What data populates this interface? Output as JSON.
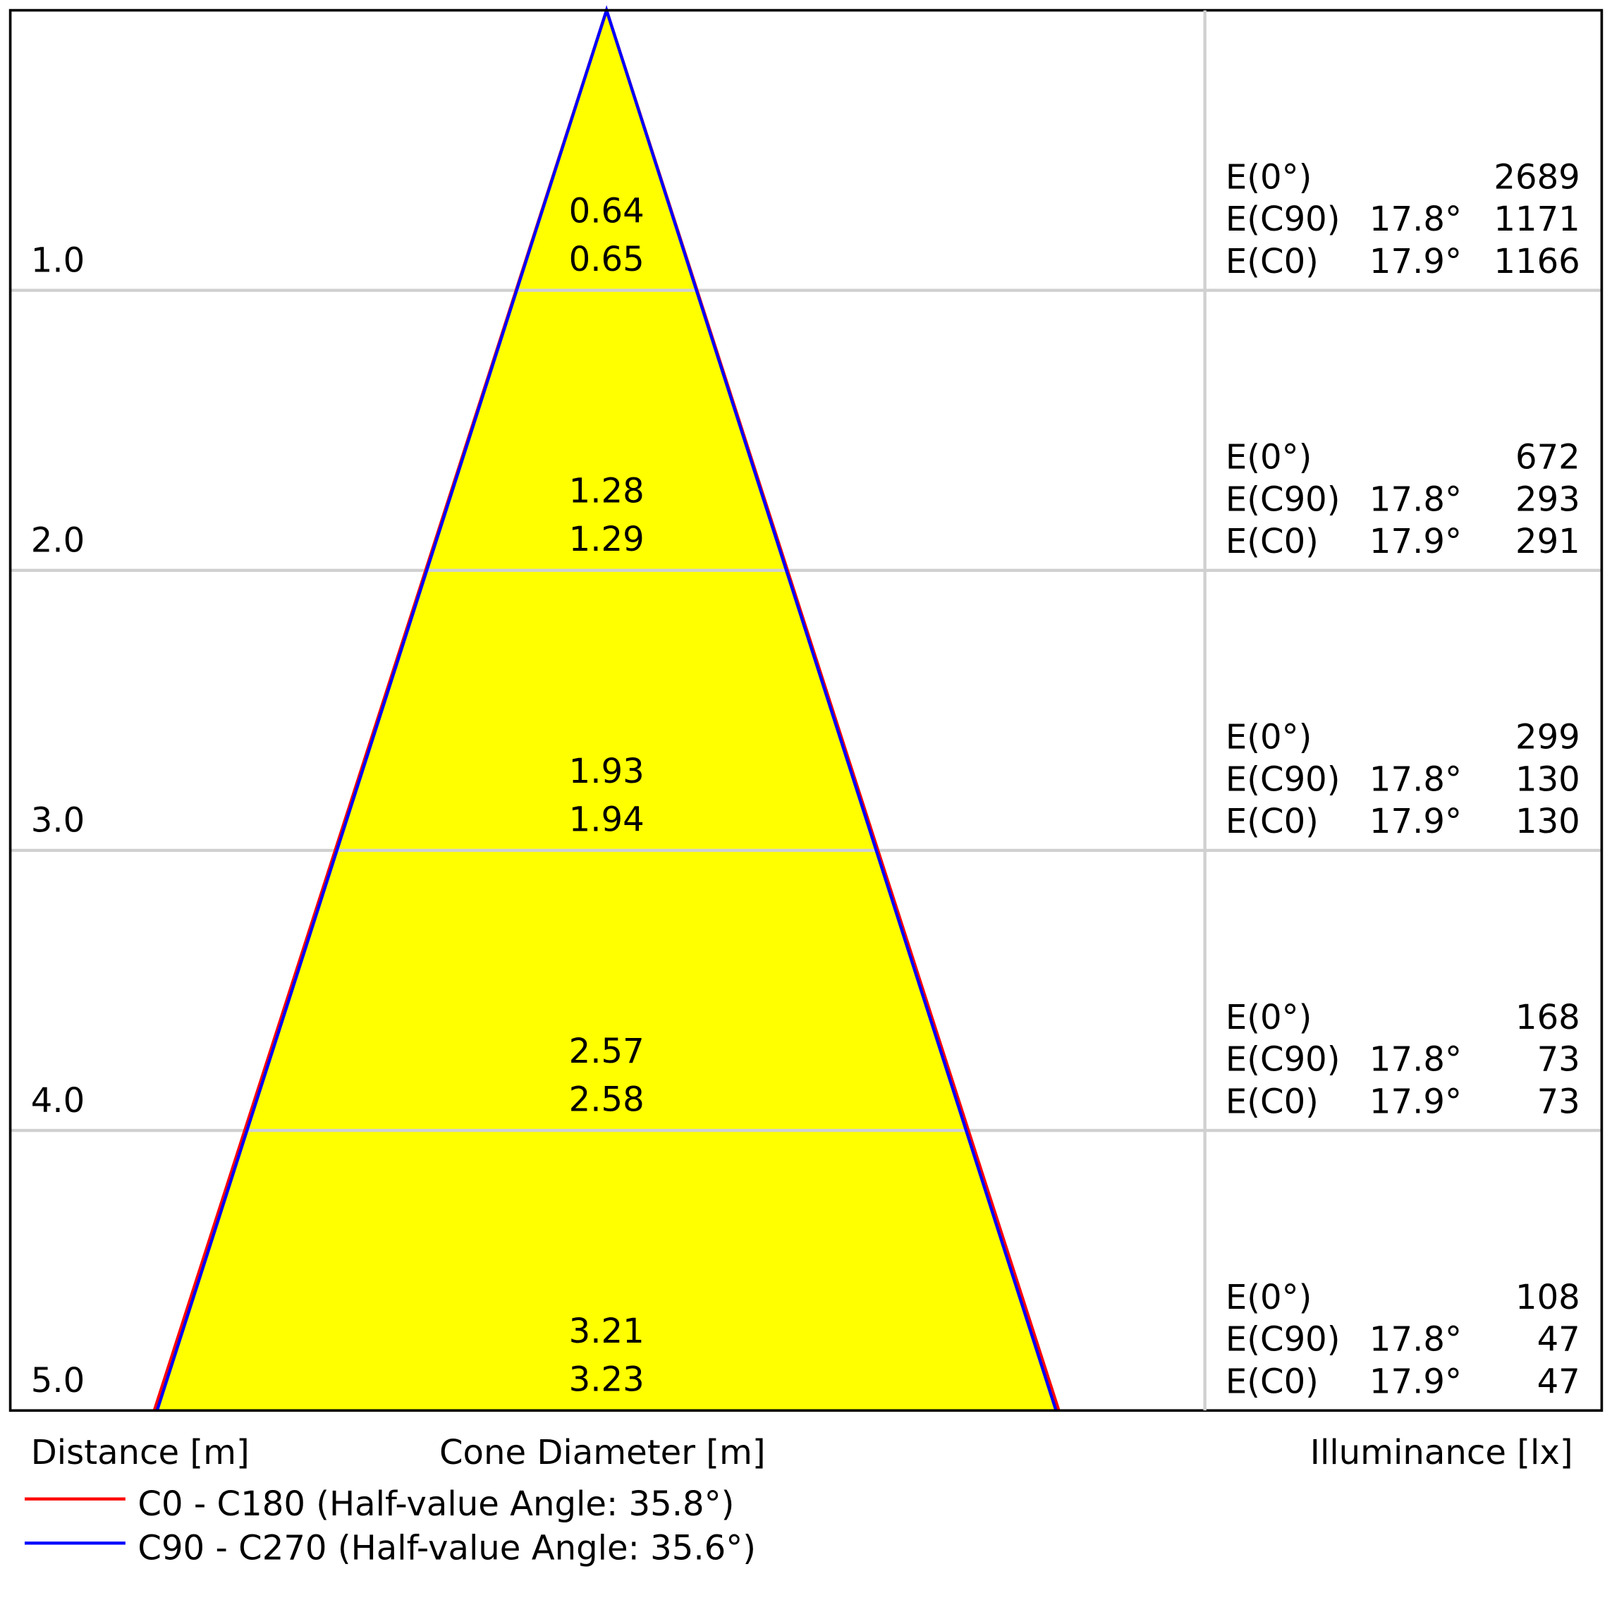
{
  "chart_data": {
    "type": "cone-diagram",
    "distance_label": "Distance [m]",
    "diameter_label": "Cone Diameter [m]",
    "illuminance_label": "Illuminance [lx]",
    "colors": {
      "cone_fill": "#ffff00",
      "c0": "#ff0000",
      "c90": "#0000ff",
      "grid": "#d0d0d0"
    },
    "legend": [
      {
        "label": "C0 - C180 (Half-value Angle: 35.8°)",
        "color": "#ff0000"
      },
      {
        "label": "C90 - C270 (Half-value Angle: 35.6°)",
        "color": "#0000ff"
      }
    ],
    "rows": [
      {
        "distance": "1.0",
        "d_c90": "0.64",
        "d_c0": "0.65",
        "e0": "2689",
        "ec90_angle": "17.8°",
        "ec90": "1171",
        "ec0_angle": "17.9°",
        "ec0": "1166"
      },
      {
        "distance": "2.0",
        "d_c90": "1.28",
        "d_c0": "1.29",
        "e0": "672",
        "ec90_angle": "17.8°",
        "ec90": "293",
        "ec0_angle": "17.9°",
        "ec0": "291"
      },
      {
        "distance": "3.0",
        "d_c90": "1.93",
        "d_c0": "1.94",
        "e0": "299",
        "ec90_angle": "17.8°",
        "ec90": "130",
        "ec0_angle": "17.9°",
        "ec0": "130"
      },
      {
        "distance": "4.0",
        "d_c90": "2.57",
        "d_c0": "2.58",
        "e0": "168",
        "ec90_angle": "17.8°",
        "ec90": "73",
        "ec0_angle": "17.9°",
        "ec0": "73"
      },
      {
        "distance": "5.0",
        "d_c90": "3.21",
        "d_c0": "3.23",
        "e0": "108",
        "ec90_angle": "17.8°",
        "ec90": "47",
        "ec0_angle": "17.9°",
        "ec0": "47"
      }
    ],
    "row_labels": {
      "e0": "E(0°)",
      "ec90": "E(C90)",
      "ec0": "E(C0)"
    }
  }
}
